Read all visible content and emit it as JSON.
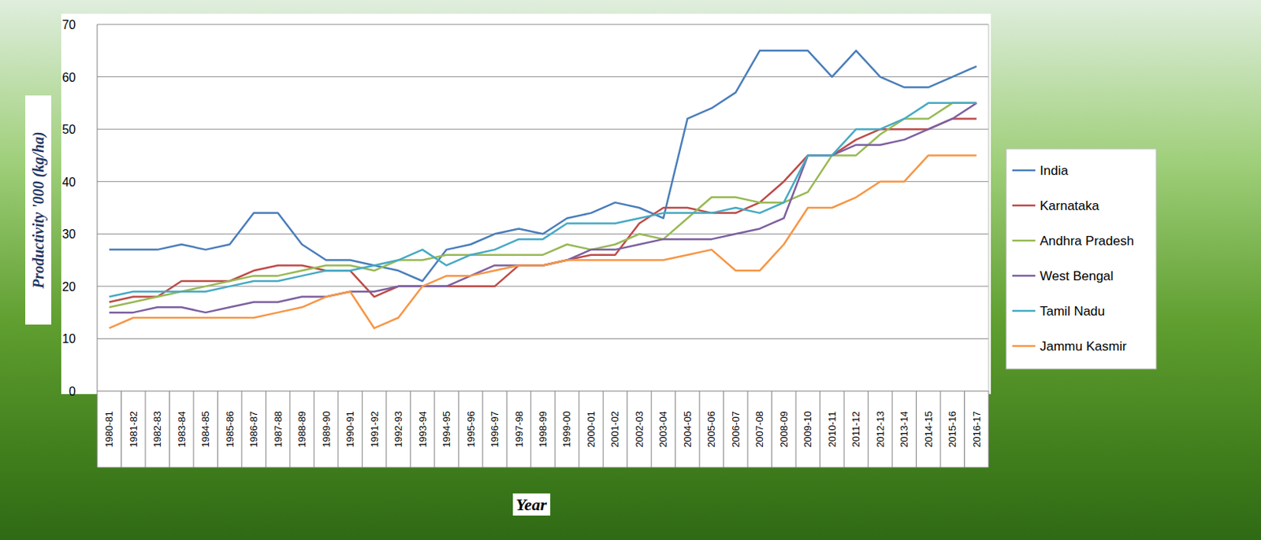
{
  "chart_data": {
    "type": "line",
    "x_label": "Year",
    "y_label": "Productivity  '000 (kg/ha)",
    "categories": [
      "1980-81",
      "1981-82",
      "1982-83",
      "1983-84",
      "1984-85",
      "1985-86",
      "1986-87",
      "1987-88",
      "1988-89",
      "1989-90",
      "1990-91",
      "1991-92",
      "1992-93",
      "1993-94",
      "1994-95",
      "1995-96",
      "1996-97",
      "1997-98",
      "1998-99",
      "1999-00",
      "2000-01",
      "2001-02",
      "2002-03",
      "2003-04",
      "2004-05",
      "2005-06",
      "2006-07",
      "2007-08",
      "2008-09",
      "2009-10",
      "2010-11",
      "2011-12",
      "2012-13",
      "2013-14",
      "2014-15",
      "2015-16",
      "2016-17"
    ],
    "series": [
      {
        "name": "India",
        "color": "#4a7ebb",
        "values": [
          27,
          27,
          27,
          28,
          27,
          28,
          34,
          34,
          28,
          25,
          25,
          24,
          23,
          21,
          27,
          28,
          30,
          31,
          30,
          33,
          34,
          36,
          35,
          33,
          52,
          54,
          57,
          65,
          65,
          65,
          60,
          65,
          60,
          58,
          58,
          60,
          62
        ]
      },
      {
        "name": "Karnataka",
        "color": "#be4b48",
        "values": [
          17,
          18,
          18,
          21,
          21,
          21,
          23,
          24,
          24,
          23,
          23,
          18,
          20,
          20,
          20,
          20,
          20,
          24,
          24,
          25,
          26,
          26,
          32,
          35,
          35,
          34,
          34,
          36,
          40,
          45,
          45,
          48,
          50,
          50,
          50,
          52,
          52
        ]
      },
      {
        "name": "Andhra Pradesh",
        "color": "#98b954",
        "values": [
          16,
          17,
          18,
          19,
          20,
          21,
          22,
          22,
          23,
          24,
          24,
          23,
          25,
          25,
          26,
          26,
          26,
          26,
          26,
          28,
          27,
          28,
          30,
          29,
          33,
          37,
          37,
          36,
          36,
          38,
          45,
          45,
          49,
          52,
          52,
          55,
          55
        ]
      },
      {
        "name": "West Bengal",
        "color": "#7d60a0",
        "values": [
          15,
          15,
          16,
          16,
          15,
          16,
          17,
          17,
          18,
          18,
          19,
          19,
          20,
          20,
          20,
          22,
          24,
          24,
          24,
          25,
          27,
          27,
          28,
          29,
          29,
          29,
          30,
          31,
          33,
          45,
          45,
          47,
          47,
          48,
          50,
          52,
          55
        ]
      },
      {
        "name": "Tamil Nadu",
        "color": "#46aac5",
        "values": [
          18,
          19,
          19,
          19,
          19,
          20,
          21,
          21,
          22,
          23,
          23,
          24,
          25,
          27,
          24,
          26,
          27,
          29,
          29,
          32,
          32,
          32,
          33,
          34,
          34,
          34,
          35,
          34,
          36,
          45,
          45,
          50,
          50,
          52,
          55,
          55,
          55
        ]
      },
      {
        "name": "Jammu Kasmir",
        "color": "#f79646",
        "values": [
          12,
          14,
          14,
          14,
          14,
          14,
          14,
          15,
          16,
          18,
          19,
          12,
          14,
          20,
          22,
          22,
          23,
          24,
          24,
          25,
          25,
          25,
          25,
          25,
          26,
          27,
          23,
          23,
          28,
          35,
          35,
          37,
          40,
          40,
          45,
          45,
          45
        ]
      }
    ],
    "ylim": [
      0,
      70
    ],
    "yticks": [
      0,
      10,
      20,
      30,
      40,
      50,
      60,
      70
    ],
    "grid": true,
    "legend": "right"
  }
}
